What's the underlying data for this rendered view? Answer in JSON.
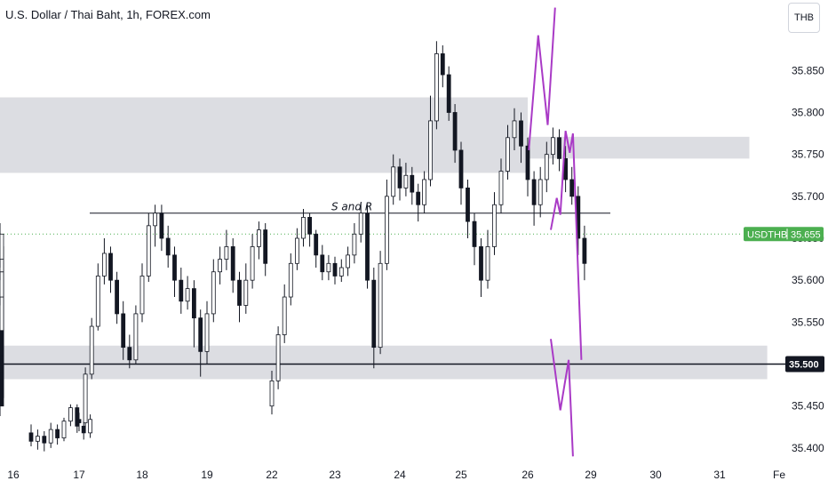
{
  "header": {
    "title": "U.S. Dollar / Thai Baht, 1h, FOREX.com"
  },
  "price_axis": {
    "unit": "THB"
  },
  "chart_data": {
    "type": "candlestick",
    "symbol": "USDTHB",
    "title": "U.S. Dollar / Thai Baht, 1h, FOREX.com",
    "y_ticks": [
      "35.400",
      "35.450",
      "35.500",
      "35.550",
      "35.600",
      "35.650",
      "35.700",
      "35.750",
      "35.800",
      "35.850"
    ],
    "x_ticks": [
      "16",
      "17",
      "18",
      "19",
      "22",
      "23",
      "24",
      "25",
      "26",
      "29",
      "30",
      "31",
      "Fe"
    ],
    "ylim": [
      35.385,
      35.915
    ],
    "current_price": {
      "label": "USDTHB",
      "value": "35.655",
      "color": "#4caf50"
    },
    "horizontal_line": {
      "value": "35.500"
    },
    "grid": false,
    "colors": {
      "candle": "#131722",
      "zone": "#dcdde2",
      "path": "#a93ac6",
      "line": "#131722"
    },
    "annotation": {
      "text": "S and R",
      "price": 35.68
    },
    "zones": [
      {
        "x0": -1.0,
        "x1": 8.0,
        "y0": 35.728,
        "y1": 35.818
      },
      {
        "x0": 8.0,
        "x1": 11.5,
        "y0": 35.745,
        "y1": 35.771
      },
      {
        "x0": -1.0,
        "x1": 11.8,
        "y0": 35.482,
        "y1": 35.522
      }
    ],
    "candles": [
      [
        16.0,
        35.418,
        35.408,
        35.428,
        35.402
      ],
      [
        16.1,
        35.408,
        35.414,
        35.422,
        35.398
      ],
      [
        16.2,
        35.414,
        35.406,
        35.42,
        35.396
      ],
      [
        16.3,
        35.406,
        35.422,
        35.43,
        35.4
      ],
      [
        16.4,
        35.422,
        35.412,
        35.428,
        35.404
      ],
      [
        16.5,
        35.412,
        35.432,
        35.436,
        35.408
      ],
      [
        16.6,
        35.432,
        35.448,
        35.452,
        35.426
      ],
      [
        16.7,
        35.448,
        35.426,
        35.452,
        35.418
      ],
      [
        16.8,
        35.426,
        35.418,
        35.432,
        35.41
      ],
      [
        16.9,
        35.418,
        35.434,
        35.44,
        35.412
      ],
      [
        17.0,
        35.434,
        35.43,
        35.442,
        35.42
      ],
      [
        17.1,
        35.43,
        35.488,
        35.496,
        35.426
      ],
      [
        17.2,
        35.488,
        35.545,
        35.555,
        35.482
      ],
      [
        17.3,
        35.545,
        35.605,
        35.62,
        35.54
      ],
      [
        17.4,
        35.605,
        35.632,
        35.65,
        35.595
      ],
      [
        17.5,
        35.632,
        35.6,
        35.64,
        35.585
      ],
      [
        17.6,
        35.6,
        35.56,
        35.61,
        35.548
      ],
      [
        17.7,
        35.56,
        35.52,
        35.575,
        35.505
      ],
      [
        17.8,
        35.52,
        35.505,
        35.535,
        35.495
      ],
      [
        17.9,
        35.505,
        35.56,
        35.57,
        35.5
      ],
      [
        18.0,
        35.56,
        35.605,
        35.62,
        35.55
      ],
      [
        18.1,
        35.605,
        35.665,
        35.68,
        35.598
      ],
      [
        18.2,
        35.665,
        35.68,
        35.69,
        35.64
      ],
      [
        18.3,
        35.68,
        35.65,
        35.69,
        35.635
      ],
      [
        18.4,
        35.65,
        35.63,
        35.665,
        35.615
      ],
      [
        18.5,
        35.63,
        35.6,
        35.64,
        35.58
      ],
      [
        18.6,
        35.6,
        35.575,
        35.615,
        35.56
      ],
      [
        18.7,
        35.575,
        35.59,
        35.605,
        35.565
      ],
      [
        18.8,
        35.59,
        35.555,
        35.6,
        35.52
      ],
      [
        18.9,
        35.555,
        35.515,
        35.565,
        35.485
      ],
      [
        19.0,
        35.515,
        35.56,
        35.575,
        35.5
      ],
      [
        19.1,
        35.56,
        35.61,
        35.625,
        35.55
      ],
      [
        19.2,
        35.61,
        35.625,
        35.64,
        35.595
      ],
      [
        19.3,
        35.625,
        35.64,
        35.66,
        35.612
      ],
      [
        19.4,
        35.64,
        35.6,
        35.65,
        35.585
      ],
      [
        19.5,
        35.6,
        35.57,
        35.61,
        35.55
      ],
      [
        19.6,
        35.57,
        35.6,
        35.62,
        35.56
      ],
      [
        19.7,
        35.6,
        35.64,
        35.655,
        35.59
      ],
      [
        19.8,
        35.64,
        35.66,
        35.67,
        35.625
      ],
      [
        19.9,
        35.66,
        35.62,
        35.668,
        35.605
      ],
      [
        20.0,
        35.62,
        35.59,
        35.63,
        35.58
      ],
      [
        20.1,
        35.59,
        35.6,
        35.615,
        35.58
      ],
      [
        20.2,
        35.6,
        35.56,
        35.61,
        35.54
      ],
      [
        20.3,
        35.56,
        35.52,
        35.57,
        35.5
      ],
      [
        20.4,
        35.52,
        35.545,
        35.56,
        35.505
      ],
      [
        20.5,
        35.545,
        35.53,
        35.56,
        35.515
      ],
      [
        20.6,
        35.53,
        35.56,
        35.575,
        35.52
      ],
      [
        20.7,
        35.56,
        35.59,
        35.6,
        35.55
      ],
      [
        20.8,
        35.59,
        35.56,
        35.6,
        35.545
      ],
      [
        20.9,
        35.56,
        35.52,
        35.57,
        35.505
      ],
      [
        21.0,
        35.52,
        35.48,
        35.53,
        35.46
      ],
      [
        21.1,
        35.48,
        35.46,
        35.495,
        35.44
      ],
      [
        21.2,
        35.46,
        35.49,
        35.505,
        35.45
      ],
      [
        21.3,
        35.49,
        35.52,
        35.535,
        35.48
      ],
      [
        21.4,
        35.52,
        35.505,
        35.53,
        35.49
      ],
      [
        21.5,
        35.505,
        35.53,
        35.545,
        35.495
      ],
      [
        21.6,
        35.53,
        35.545,
        35.56,
        35.52
      ],
      [
        21.7,
        35.545,
        35.51,
        35.55,
        35.495
      ],
      [
        21.8,
        35.51,
        35.49,
        35.52,
        35.475
      ],
      [
        21.9,
        35.49,
        35.45,
        35.5,
        35.438
      ],
      [
        22.0,
        35.45,
        35.48,
        35.492,
        35.44
      ],
      [
        22.1,
        35.48,
        35.535,
        35.545,
        35.47
      ],
      [
        22.2,
        35.535,
        35.58,
        35.595,
        35.525
      ],
      [
        22.3,
        35.58,
        35.62,
        35.632,
        35.57
      ],
      [
        22.4,
        35.62,
        35.65,
        35.662,
        35.612
      ],
      [
        22.5,
        35.65,
        35.675,
        35.685,
        35.64
      ],
      [
        22.6,
        35.675,
        35.655,
        35.68,
        35.64
      ],
      [
        22.7,
        35.655,
        35.63,
        35.66,
        35.615
      ],
      [
        22.8,
        35.63,
        35.61,
        35.642,
        35.6
      ],
      [
        22.9,
        35.61,
        35.62,
        35.63,
        35.6
      ],
      [
        23.0,
        35.62,
        35.605,
        35.628,
        35.595
      ],
      [
        23.1,
        35.605,
        35.615,
        35.625,
        35.598
      ],
      [
        23.2,
        35.615,
        35.63,
        35.64,
        35.605
      ],
      [
        23.3,
        35.63,
        35.655,
        35.668,
        35.62
      ],
      [
        23.4,
        35.655,
        35.68,
        35.692,
        35.645
      ],
      [
        23.5,
        35.68,
        35.6,
        35.69,
        35.59
      ],
      [
        23.6,
        35.6,
        35.52,
        35.615,
        35.495
      ],
      [
        23.7,
        35.52,
        35.62,
        35.635,
        35.512
      ],
      [
        23.8,
        35.62,
        35.7,
        35.72,
        35.612
      ],
      [
        23.9,
        35.7,
        35.735,
        35.75,
        35.69
      ],
      [
        24.0,
        35.735,
        35.71,
        35.745,
        35.695
      ],
      [
        24.1,
        35.71,
        35.725,
        35.74,
        35.7
      ],
      [
        24.2,
        35.725,
        35.705,
        35.735,
        35.69
      ],
      [
        24.3,
        35.705,
        35.69,
        35.715,
        35.67
      ],
      [
        24.4,
        35.69,
        35.72,
        35.73,
        35.68
      ],
      [
        24.5,
        35.72,
        35.79,
        35.82,
        35.712
      ],
      [
        24.6,
        35.79,
        35.87,
        35.885,
        35.78
      ],
      [
        24.7,
        35.87,
        35.845,
        35.88,
        35.83
      ],
      [
        24.8,
        35.845,
        35.8,
        35.855,
        35.79
      ],
      [
        24.9,
        35.8,
        35.755,
        35.81,
        35.74
      ],
      [
        25.0,
        35.755,
        35.71,
        35.765,
        35.69
      ],
      [
        25.1,
        35.71,
        35.67,
        35.72,
        35.65
      ],
      [
        25.2,
        35.67,
        35.64,
        35.68,
        35.618
      ],
      [
        25.3,
        35.64,
        35.6,
        35.65,
        35.58
      ],
      [
        25.4,
        35.6,
        35.64,
        35.66,
        35.59
      ],
      [
        25.5,
        35.64,
        35.69,
        35.705,
        35.63
      ],
      [
        25.6,
        35.69,
        35.73,
        35.745,
        35.68
      ],
      [
        25.7,
        35.73,
        35.77,
        35.785,
        35.72
      ],
      [
        25.8,
        35.77,
        35.79,
        35.805,
        35.755
      ],
      [
        25.9,
        35.79,
        35.76,
        35.8,
        35.74
      ],
      [
        26.0,
        35.76,
        35.72,
        35.77,
        35.7
      ],
      [
        26.1,
        35.72,
        35.69,
        35.73,
        35.665
      ],
      [
        26.2,
        35.69,
        35.72,
        35.735,
        35.675
      ],
      [
        26.3,
        35.72,
        35.75,
        35.765,
        35.705
      ],
      [
        26.4,
        35.75,
        35.77,
        35.782,
        35.738
      ],
      [
        26.5,
        35.77,
        35.745,
        35.78,
        35.73
      ],
      [
        26.6,
        35.745,
        35.72,
        35.76,
        35.705
      ],
      [
        26.7,
        35.72,
        35.7,
        35.735,
        35.69
      ],
      [
        26.8,
        35.7,
        35.65,
        35.712,
        35.63
      ],
      [
        26.9,
        35.65,
        35.62,
        35.665,
        35.6
      ],
      [
        27.0,
        35.62,
        35.64,
        35.655,
        35.61
      ],
      [
        27.1,
        35.64,
        35.61,
        35.65,
        35.59
      ],
      [
        27.2,
        35.61,
        35.56,
        35.62,
        35.545
      ],
      [
        27.3,
        35.56,
        35.54,
        35.575,
        35.525
      ],
      [
        27.4,
        35.54,
        35.58,
        35.595,
        35.53
      ],
      [
        27.5,
        35.58,
        35.61,
        35.622,
        35.57
      ],
      [
        27.6,
        35.61,
        35.625,
        35.64,
        35.6
      ],
      [
        27.7,
        35.625,
        35.655,
        35.668,
        35.615
      ]
    ],
    "paths": [
      [
        [
          26.05,
          35.755
        ],
        [
          26.5,
          35.892
        ],
        [
          26.95,
          35.785
        ],
        [
          27.3,
          35.925
        ]
      ],
      [
        [
          27.1,
          35.66
        ],
        [
          27.38,
          35.698
        ],
        [
          27.55,
          35.678
        ],
        [
          27.8,
          35.778
        ],
        [
          28.0,
          35.752
        ],
        [
          28.15,
          35.775
        ],
        [
          28.55,
          35.505
        ]
      ],
      [
        [
          27.1,
          35.53
        ],
        [
          27.55,
          35.445
        ],
        [
          27.95,
          35.505
        ],
        [
          28.15,
          35.39
        ]
      ]
    ]
  }
}
